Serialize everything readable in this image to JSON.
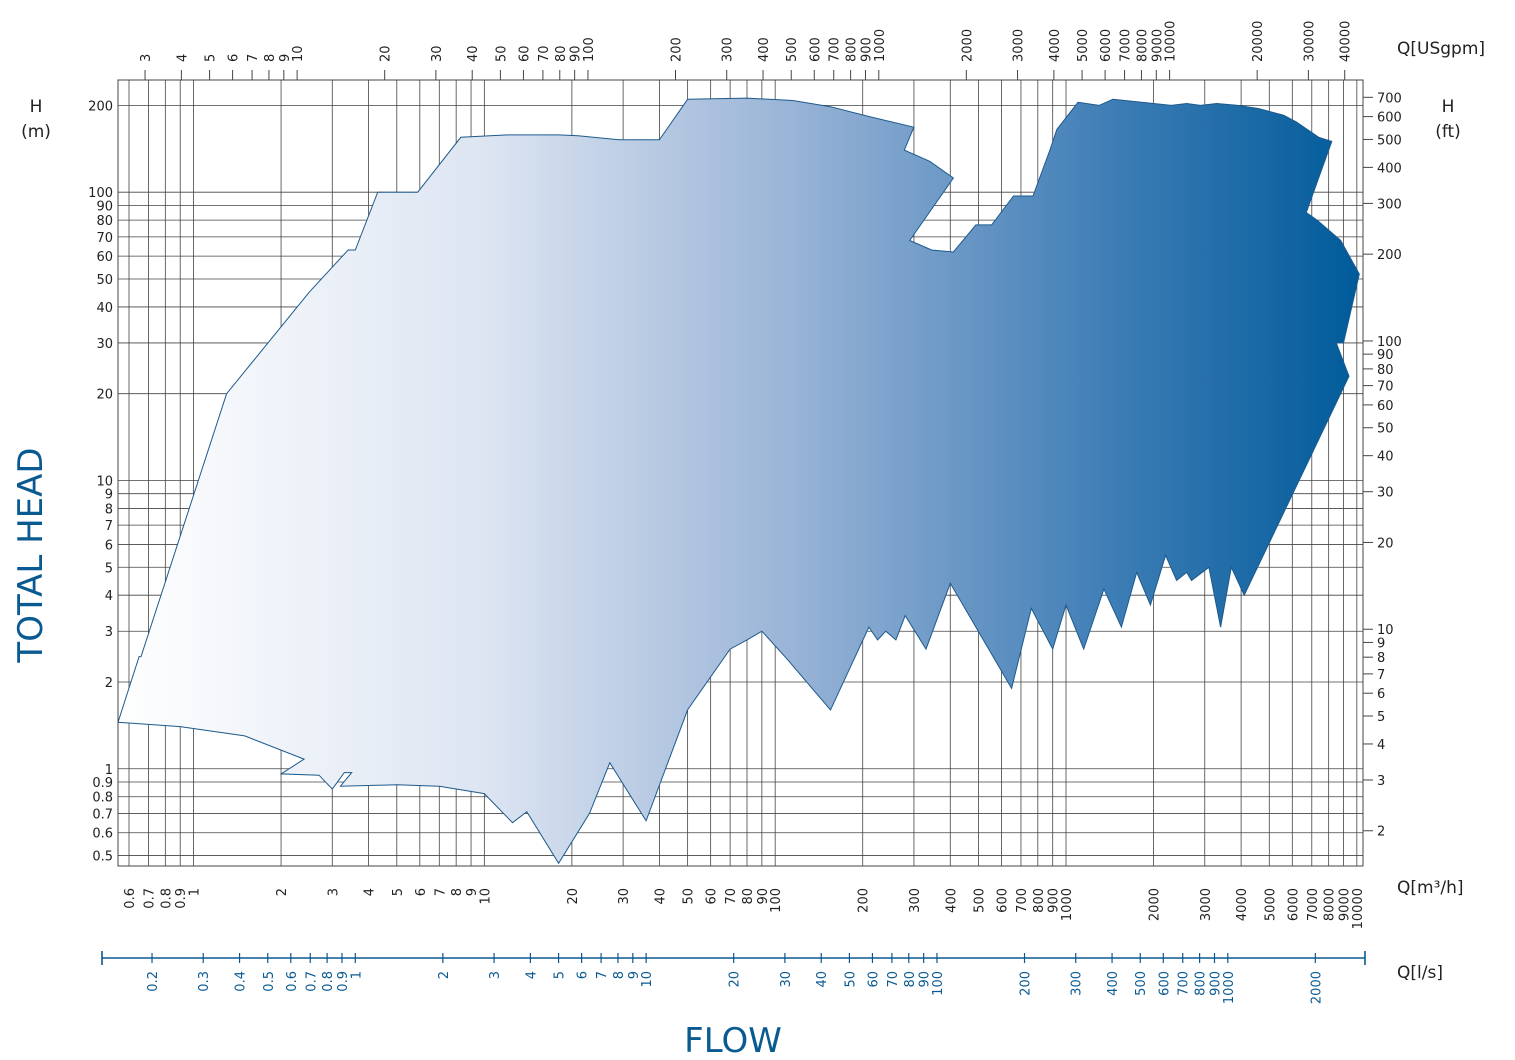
{
  "chart_data": {
    "type": "area",
    "title": "",
    "xlabel": "FLOW",
    "ylabel": "TOTAL HEAD",
    "x_scale": "log",
    "y_scale": "log",
    "x_unit_label": "Q[m³/h]",
    "x_secondary_top_label": "Q[USgpm]",
    "x_secondary_bottom_label": "Q[l/s]",
    "y_left_label": [
      "H",
      "(m)"
    ],
    "y_right_label": [
      "H",
      "(ft)"
    ],
    "xlim": [
      0.55,
      10500
    ],
    "ylim": [
      0.46,
      245
    ],
    "grid": true,
    "legend": "none",
    "colors": {
      "gradient_start": "#ffffff",
      "gradient_end": "#005b9a",
      "outline": "#1d5a8c",
      "label_blue": "#0a5a92"
    },
    "x_ticks_m3h": [
      {
        "v": 0.6,
        "t": "0.6"
      },
      {
        "v": 0.7,
        "t": "0.7"
      },
      {
        "v": 0.8,
        "t": "0.8"
      },
      {
        "v": 0.9,
        "t": "0.9"
      },
      {
        "v": 1,
        "t": "1"
      },
      {
        "v": 2,
        "t": "2"
      },
      {
        "v": 3,
        "t": "3"
      },
      {
        "v": 4,
        "t": "4"
      },
      {
        "v": 5,
        "t": "5"
      },
      {
        "v": 6,
        "t": "6"
      },
      {
        "v": 7,
        "t": "7"
      },
      {
        "v": 8,
        "t": "8"
      },
      {
        "v": 9,
        "t": "9"
      },
      {
        "v": 10,
        "t": "10"
      },
      {
        "v": 20,
        "t": "20"
      },
      {
        "v": 30,
        "t": "30"
      },
      {
        "v": 40,
        "t": "40"
      },
      {
        "v": 50,
        "t": "50"
      },
      {
        "v": 60,
        "t": "60"
      },
      {
        "v": 70,
        "t": "70"
      },
      {
        "v": 80,
        "t": "80"
      },
      {
        "v": 90,
        "t": "90"
      },
      {
        "v": 100,
        "t": "100"
      },
      {
        "v": 200,
        "t": "200"
      },
      {
        "v": 300,
        "t": "300"
      },
      {
        "v": 400,
        "t": "400"
      },
      {
        "v": 500,
        "t": "500"
      },
      {
        "v": 600,
        "t": "600"
      },
      {
        "v": 700,
        "t": "700"
      },
      {
        "v": 800,
        "t": "800"
      },
      {
        "v": 900,
        "t": "900"
      },
      {
        "v": 1000,
        "t": "1000"
      },
      {
        "v": 2000,
        "t": "2000"
      },
      {
        "v": 3000,
        "t": "3000"
      },
      {
        "v": 4000,
        "t": "4000"
      },
      {
        "v": 5000,
        "t": "5000"
      },
      {
        "v": 6000,
        "t": "6000"
      },
      {
        "v": 7000,
        "t": "7000"
      },
      {
        "v": 8000,
        "t": "8000"
      },
      {
        "v": 9000,
        "t": "9000"
      },
      {
        "v": 10000,
        "t": "10000"
      }
    ],
    "x_ticks_usgpm": [
      {
        "v": 3,
        "t": "3"
      },
      {
        "v": 4,
        "t": "4"
      },
      {
        "v": 5,
        "t": "5"
      },
      {
        "v": 6,
        "t": "6"
      },
      {
        "v": 7,
        "t": "7"
      },
      {
        "v": 8,
        "t": "8"
      },
      {
        "v": 9,
        "t": "9"
      },
      {
        "v": 10,
        "t": "10"
      },
      {
        "v": 20,
        "t": "20"
      },
      {
        "v": 30,
        "t": "30"
      },
      {
        "v": 40,
        "t": "40"
      },
      {
        "v": 50,
        "t": "50"
      },
      {
        "v": 60,
        "t": "60"
      },
      {
        "v": 70,
        "t": "70"
      },
      {
        "v": 80,
        "t": "80"
      },
      {
        "v": 90,
        "t": "90"
      },
      {
        "v": 100,
        "t": "100"
      },
      {
        "v": 200,
        "t": "200"
      },
      {
        "v": 300,
        "t": "300"
      },
      {
        "v": 400,
        "t": "400"
      },
      {
        "v": 500,
        "t": "500"
      },
      {
        "v": 600,
        "t": "600"
      },
      {
        "v": 700,
        "t": "700"
      },
      {
        "v": 800,
        "t": "800"
      },
      {
        "v": 900,
        "t": "900"
      },
      {
        "v": 1000,
        "t": "1000"
      },
      {
        "v": 2000,
        "t": "2000"
      },
      {
        "v": 3000,
        "t": "3000"
      },
      {
        "v": 4000,
        "t": "4000"
      },
      {
        "v": 5000,
        "t": "5000"
      },
      {
        "v": 6000,
        "t": "6000"
      },
      {
        "v": 7000,
        "t": "7000"
      },
      {
        "v": 8000,
        "t": "8000"
      },
      {
        "v": 9000,
        "t": "9000"
      },
      {
        "v": 10000,
        "t": "10000"
      },
      {
        "v": 20000,
        "t": "20000"
      },
      {
        "v": 30000,
        "t": "30000"
      },
      {
        "v": 40000,
        "t": "40000"
      }
    ],
    "x_ticks_ls": [
      {
        "v": 0.2,
        "t": "0.2"
      },
      {
        "v": 0.3,
        "t": "0.3"
      },
      {
        "v": 0.4,
        "t": "0.4"
      },
      {
        "v": 0.5,
        "t": "0.5"
      },
      {
        "v": 0.6,
        "t": "0.6"
      },
      {
        "v": 0.7,
        "t": "0.7"
      },
      {
        "v": 0.8,
        "t": "0.8"
      },
      {
        "v": 0.9,
        "t": "0.9"
      },
      {
        "v": 1,
        "t": "1"
      },
      {
        "v": 2,
        "t": "2"
      },
      {
        "v": 3,
        "t": "3"
      },
      {
        "v": 4,
        "t": "4"
      },
      {
        "v": 5,
        "t": "5"
      },
      {
        "v": 6,
        "t": "6"
      },
      {
        "v": 7,
        "t": "7"
      },
      {
        "v": 8,
        "t": "8"
      },
      {
        "v": 9,
        "t": "9"
      },
      {
        "v": 10,
        "t": "10"
      },
      {
        "v": 20,
        "t": "20"
      },
      {
        "v": 30,
        "t": "30"
      },
      {
        "v": 40,
        "t": "40"
      },
      {
        "v": 50,
        "t": "50"
      },
      {
        "v": 60,
        "t": "60"
      },
      {
        "v": 70,
        "t": "70"
      },
      {
        "v": 80,
        "t": "80"
      },
      {
        "v": 90,
        "t": "90"
      },
      {
        "v": 100,
        "t": "100"
      },
      {
        "v": 200,
        "t": "200"
      },
      {
        "v": 300,
        "t": "300"
      },
      {
        "v": 400,
        "t": "400"
      },
      {
        "v": 500,
        "t": "500"
      },
      {
        "v": 600,
        "t": "600"
      },
      {
        "v": 700,
        "t": "700"
      },
      {
        "v": 800,
        "t": "800"
      },
      {
        "v": 900,
        "t": "900"
      },
      {
        "v": 1000,
        "t": "1000"
      },
      {
        "v": 2000,
        "t": "2000"
      }
    ],
    "y_ticks_m": [
      {
        "v": 0.5,
        "t": "0.5"
      },
      {
        "v": 0.6,
        "t": "0.6"
      },
      {
        "v": 0.7,
        "t": "0.7"
      },
      {
        "v": 0.8,
        "t": "0.8"
      },
      {
        "v": 0.9,
        "t": "0.9"
      },
      {
        "v": 1,
        "t": "1"
      },
      {
        "v": 2,
        "t": "2"
      },
      {
        "v": 3,
        "t": "3"
      },
      {
        "v": 4,
        "t": "4"
      },
      {
        "v": 5,
        "t": "5"
      },
      {
        "v": 6,
        "t": "6"
      },
      {
        "v": 7,
        "t": "7"
      },
      {
        "v": 8,
        "t": "8"
      },
      {
        "v": 9,
        "t": "9"
      },
      {
        "v": 10,
        "t": "10"
      },
      {
        "v": 20,
        "t": "20"
      },
      {
        "v": 30,
        "t": "30"
      },
      {
        "v": 40,
        "t": "40"
      },
      {
        "v": 50,
        "t": "50"
      },
      {
        "v": 60,
        "t": "60"
      },
      {
        "v": 70,
        "t": "70"
      },
      {
        "v": 80,
        "t": "80"
      },
      {
        "v": 90,
        "t": "90"
      },
      {
        "v": 100,
        "t": "100"
      },
      {
        "v": 200,
        "t": "200"
      }
    ],
    "y_ticks_ft": [
      {
        "v": 2,
        "t": "2"
      },
      {
        "v": 3,
        "t": "3"
      },
      {
        "v": 4,
        "t": "4"
      },
      {
        "v": 5,
        "t": "5"
      },
      {
        "v": 6,
        "t": "6"
      },
      {
        "v": 7,
        "t": "7"
      },
      {
        "v": 8,
        "t": "8"
      },
      {
        "v": 9,
        "t": "9"
      },
      {
        "v": 10,
        "t": "10"
      },
      {
        "v": 20,
        "t": "20"
      },
      {
        "v": 30,
        "t": "30"
      },
      {
        "v": 40,
        "t": "40"
      },
      {
        "v": 50,
        "t": "50"
      },
      {
        "v": 60,
        "t": "60"
      },
      {
        "v": 70,
        "t": "70"
      },
      {
        "v": 80,
        "t": "80"
      },
      {
        "v": 90,
        "t": "90"
      },
      {
        "v": 100,
        "t": "100"
      },
      {
        "v": 200,
        "t": "200"
      },
      {
        "v": 300,
        "t": "300"
      },
      {
        "v": 400,
        "t": "400"
      },
      {
        "v": 500,
        "t": "500"
      },
      {
        "v": 600,
        "t": "600"
      },
      {
        "v": 700,
        "t": "700"
      }
    ],
    "envelope": [
      [
        0.55,
        1.45
      ],
      [
        0.65,
        2.45
      ],
      [
        0.66,
        2.45
      ],
      [
        1.3,
        20
      ],
      [
        2.5,
        45
      ],
      [
        3.4,
        63
      ],
      [
        3.6,
        63
      ],
      [
        4.3,
        100
      ],
      [
        5.9,
        100
      ],
      [
        8.3,
        155
      ],
      [
        12,
        158
      ],
      [
        18,
        158
      ],
      [
        21,
        157
      ],
      [
        29,
        152
      ],
      [
        40,
        152
      ],
      [
        50,
        210
      ],
      [
        80,
        212
      ],
      [
        115,
        208
      ],
      [
        155,
        198
      ],
      [
        210,
        183
      ],
      [
        300,
        168
      ],
      [
        278,
        140
      ],
      [
        340,
        128
      ],
      [
        410,
        112
      ],
      [
        290,
        68
      ],
      [
        345,
        63
      ],
      [
        410,
        62
      ],
      [
        490,
        77
      ],
      [
        555,
        77
      ],
      [
        660,
        97
      ],
      [
        770,
        97
      ],
      [
        880,
        140
      ],
      [
        930,
        165
      ],
      [
        1100,
        205
      ],
      [
        1300,
        200
      ],
      [
        1450,
        210
      ],
      [
        2000,
        203
      ],
      [
        2300,
        200
      ],
      [
        2600,
        203
      ],
      [
        2900,
        200
      ],
      [
        3300,
        203
      ],
      [
        3900,
        200
      ],
      [
        4600,
        195
      ],
      [
        5600,
        185
      ],
      [
        6200,
        175
      ],
      [
        7400,
        155
      ],
      [
        8200,
        150
      ],
      [
        6700,
        85
      ],
      [
        7300,
        80
      ],
      [
        8800,
        68
      ],
      [
        10200,
        52
      ],
      [
        9000,
        30
      ],
      [
        8500,
        30
      ],
      [
        9400,
        23
      ],
      [
        4100,
        4.0
      ],
      [
        3700,
        5.0
      ],
      [
        3400,
        3.1
      ],
      [
        3100,
        5.0
      ],
      [
        2700,
        4.5
      ],
      [
        2600,
        4.8
      ],
      [
        2400,
        4.5
      ],
      [
        2200,
        5.5
      ],
      [
        1950,
        3.7
      ],
      [
        1750,
        4.8
      ],
      [
        1550,
        3.1
      ],
      [
        1350,
        4.2
      ],
      [
        1150,
        2.6
      ],
      [
        1000,
        3.7
      ],
      [
        900,
        2.6
      ],
      [
        760,
        3.6
      ],
      [
        650,
        1.9
      ],
      [
        400,
        4.4
      ],
      [
        330,
        2.6
      ],
      [
        280,
        3.4
      ],
      [
        260,
        2.8
      ],
      [
        240,
        3.0
      ],
      [
        225,
        2.8
      ],
      [
        210,
        3.1
      ],
      [
        155,
        1.6
      ],
      [
        110,
        2.4
      ],
      [
        90,
        3.0
      ],
      [
        80,
        2.8
      ],
      [
        70,
        2.6
      ],
      [
        50,
        1.6
      ],
      [
        36,
        0.66
      ],
      [
        27,
        1.05
      ],
      [
        23,
        0.7
      ],
      [
        18,
        0.47
      ],
      [
        14,
        0.71
      ],
      [
        12.5,
        0.65
      ],
      [
        10,
        0.82
      ],
      [
        7,
        0.87
      ],
      [
        5,
        0.88
      ],
      [
        3.2,
        0.87
      ],
      [
        3.5,
        0.97
      ],
      [
        3.3,
        0.97
      ],
      [
        3.0,
        0.85
      ],
      [
        2.7,
        0.95
      ],
      [
        2.0,
        0.96
      ],
      [
        2.4,
        1.08
      ],
      [
        1.5,
        1.3
      ],
      [
        0.9,
        1.4
      ],
      [
        0.55,
        1.45
      ]
    ]
  }
}
